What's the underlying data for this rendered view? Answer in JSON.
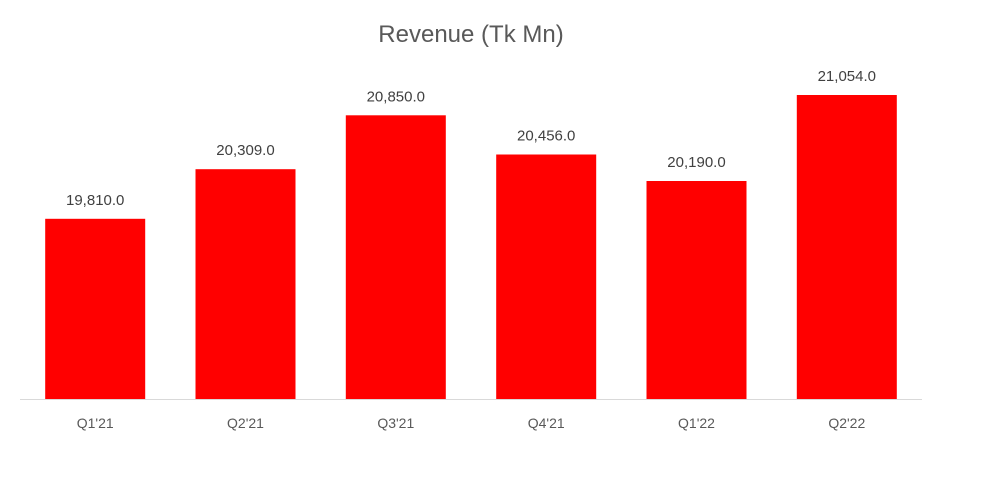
{
  "chart_data": {
    "type": "bar",
    "title": "Revenue (Tk Mn)",
    "xlabel": "",
    "ylabel": "",
    "categories": [
      "Q1'21",
      "Q2'21",
      "Q3'21",
      "Q4'21",
      "Q1'22",
      "Q2'22"
    ],
    "values": [
      19810.0,
      20309.0,
      20850.0,
      20456.0,
      20190.0,
      21054.0
    ],
    "value_labels": [
      "19,810.0",
      "20,309.0",
      "20,850.0",
      "20,456.0",
      "20,190.0",
      "21,054.0"
    ],
    "ylim": [
      18000,
      21500
    ],
    "grid": false,
    "legend": "none",
    "bar_color": "#FF0000",
    "axis_color": "#D9D9D9"
  }
}
